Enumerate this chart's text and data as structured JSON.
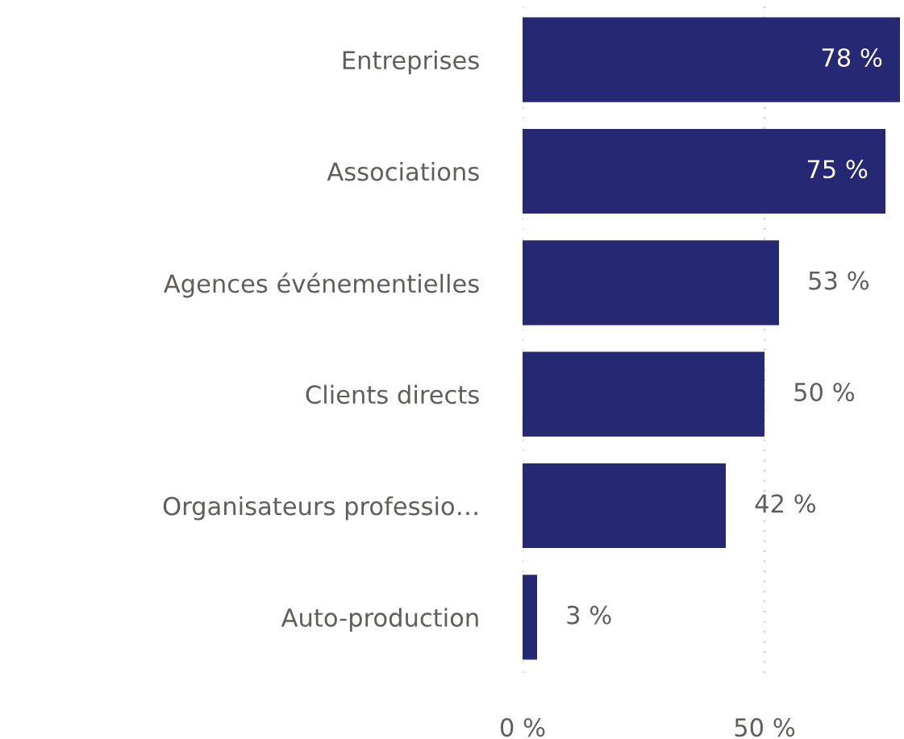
{
  "chart_data": {
    "type": "bar",
    "orientation": "horizontal",
    "categories": [
      "Entreprises",
      "Associations",
      "Agences événementielles",
      "Clients directs",
      "Organisateurs professio…",
      "Auto-production"
    ],
    "values": [
      78,
      75,
      53,
      50,
      42,
      3
    ],
    "value_labels": [
      "78 %",
      "75 %",
      "53 %",
      "50 %",
      "42 %",
      "3 %"
    ],
    "color": "#262873",
    "xlim": [
      0,
      78
    ],
    "xticks": [
      {
        "value": 0,
        "label": "0 %"
      },
      {
        "value": 50,
        "label": "50 %"
      }
    ],
    "grid": "x"
  }
}
